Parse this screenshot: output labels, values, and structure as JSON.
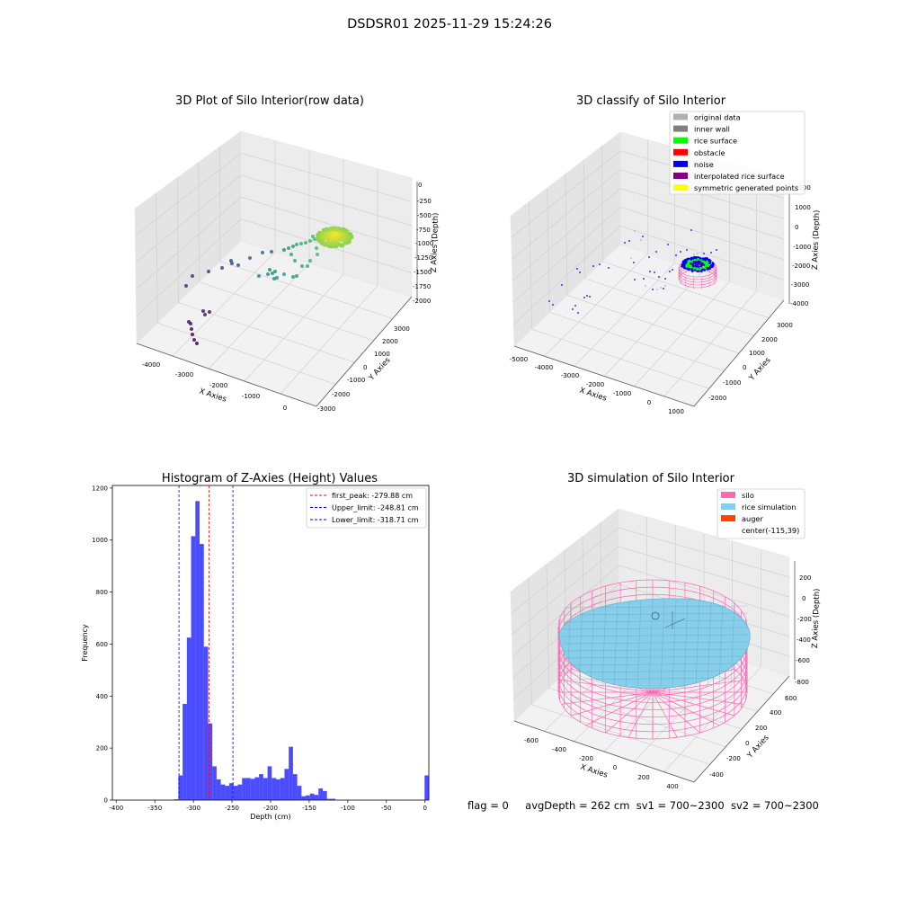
{
  "figure": {
    "title": "DSDSR01 2025-11-29 15:24:26",
    "footer": {
      "flag": "flag = 0",
      "avg_depth": "avgDepth = 262 cm",
      "sv1": "sv1 = 700~2300",
      "sv2": "sv2 = 700~2300"
    }
  },
  "chart_data": [
    {
      "type": "scatter",
      "title": "3D Plot of Silo Interior(row data)",
      "xlabel": "X Axies",
      "ylabel": "Y Axies",
      "zlabel": "Z Axies (Depth)",
      "x_ticks": [
        "-4000",
        "-3000",
        "-2000",
        "-1000",
        "0"
      ],
      "y_ticks": [
        "-3000",
        "-2000",
        "-1000",
        "0",
        "1000",
        "2000",
        "3000"
      ],
      "z_ticks": [
        "0",
        "-250",
        "-500",
        "-750",
        "-1000",
        "-1250",
        "-1500",
        "-1750",
        "-2000"
      ],
      "colormap": "viridis"
    },
    {
      "type": "scatter",
      "title": "3D classify of Silo Interior",
      "xlabel": "X Axies",
      "ylabel": "Y Axies",
      "zlabel": "Z Axies (Depth)",
      "x_ticks": [
        "-5000",
        "-4000",
        "-3000",
        "-2000",
        "-1000",
        "0",
        "1000"
      ],
      "y_ticks": [
        "-2000",
        "-1000",
        "0",
        "1000",
        "2000",
        "3000"
      ],
      "z_ticks": [
        "2000",
        "1000",
        "0",
        "-1000",
        "-2000",
        "-3000",
        "-4000"
      ],
      "legend_position": "top-right",
      "legend": [
        {
          "label": "original data",
          "color": "#b0b0b0"
        },
        {
          "label": "inner wall",
          "color": "#808080"
        },
        {
          "label": "rice surface",
          "color": "#00ff00"
        },
        {
          "label": "obstacle",
          "color": "#ff0000"
        },
        {
          "label": "noise",
          "color": "#0000ff"
        },
        {
          "label": "interpolated rice surface",
          "color": "#800080"
        },
        {
          "label": "symmetric generated points",
          "color": "#ffff00"
        }
      ]
    },
    {
      "type": "bar",
      "title": "Histogram of Z-Axies (Height) Values",
      "xlabel": "Depth (cm)",
      "ylabel": "Frequency",
      "xlim": [
        -405,
        5
      ],
      "ylim": [
        0,
        1210
      ],
      "x_ticks": [
        -400,
        -350,
        -300,
        -250,
        -200,
        -150,
        -100,
        -50,
        0
      ],
      "y_ticks": [
        0,
        200,
        400,
        600,
        800,
        1000,
        1200
      ],
      "bar_color": "#0000ff",
      "bin_width": 5.5,
      "bin_starts": [
        -325,
        -319.5,
        -314,
        -308.5,
        -303,
        -297.5,
        -292,
        -286.5,
        -281,
        -275.5,
        -270,
        -264.5,
        -259,
        -253.5,
        -248,
        -242.5,
        -237,
        -231.5,
        -226,
        -220.5,
        -215,
        -209.5,
        -204,
        -198.5,
        -193,
        -187.5,
        -182,
        -176.5,
        -171,
        -165.5,
        -160,
        -154.5,
        -149,
        -143.5,
        -138,
        -132.5,
        -127,
        -121.5,
        -116,
        -110.5,
        -105,
        -99.5,
        -94,
        -88.5,
        -83,
        -77.5,
        -72,
        -66.5,
        -61,
        -55.5,
        -50,
        -44.5,
        -39,
        -33.5,
        -28,
        -22.5,
        -17,
        -11.5,
        -6,
        -0.5
      ],
      "values": [
        3,
        95,
        370,
        625,
        1015,
        1150,
        985,
        590,
        295,
        130,
        80,
        60,
        55,
        65,
        55,
        60,
        85,
        85,
        82,
        88,
        100,
        85,
        130,
        85,
        80,
        85,
        120,
        205,
        100,
        55,
        15,
        18,
        25,
        20,
        45,
        35,
        5,
        5,
        0,
        0,
        0,
        0,
        0,
        0,
        0,
        0,
        0,
        0,
        0,
        0,
        0,
        0,
        0,
        0,
        0,
        0,
        0,
        0,
        0,
        95
      ],
      "vlines": [
        {
          "label": "first_peak: -279.88 cm",
          "x": -279.88,
          "color": "#ff0000"
        },
        {
          "label": "Upper_limit: -248.81 cm",
          "x": -248.81,
          "color": "#0000ff"
        },
        {
          "label": "Lower_limit: -318.71 cm",
          "x": -318.71,
          "color": "#0000ff"
        }
      ],
      "legend_position": "top-right"
    },
    {
      "type": "scatter",
      "title": "3D simulation of Silo Interior",
      "xlabel": "X Axies",
      "ylabel": "Y Axies",
      "zlabel": "Z Axies (Depth)",
      "x_ticks": [
        "-600",
        "-400",
        "-200",
        "0",
        "200",
        "400"
      ],
      "y_ticks": [
        "-400",
        "-200",
        "0",
        "200",
        "400",
        "600"
      ],
      "z_ticks": [
        "200",
        "0",
        "-200",
        "-400",
        "-600",
        "-800"
      ],
      "legend_position": "top-right",
      "legend": [
        {
          "label": "silo",
          "color": "#ff69b4"
        },
        {
          "label": "rice simulation",
          "color": "#87ceeb"
        },
        {
          "label": "auger",
          "color": "#ff4500"
        },
        {
          "label": "center(-115,39)",
          "color": ""
        }
      ]
    }
  ]
}
